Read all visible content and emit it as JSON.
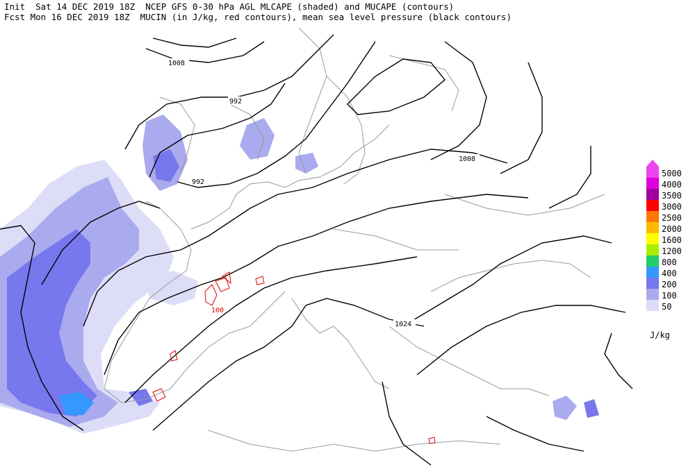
{
  "header": {
    "line1": "Init  Sat 14 DEC 2019 18Z  NCEP GFS 0-30 hPa AGL MLCAPE (shaded) and MUCAPE (contours)",
    "line2": "Fcst Mon 16 DEC 2019 18Z  MUCIN (in J/kg, red contours), mean sea level pressure (black contours)"
  },
  "legend": {
    "units": "J/kg",
    "levels": [
      {
        "label": "5000",
        "color": "#ee44ee"
      },
      {
        "label": "4000",
        "color": "#dd00dd"
      },
      {
        "label": "3500",
        "color": "#a000a0"
      },
      {
        "label": "3000",
        "color": "#ff0000"
      },
      {
        "label": "2500",
        "color": "#ff7700"
      },
      {
        "label": "2000",
        "color": "#ffbb00"
      },
      {
        "label": "1600",
        "color": "#ffff00"
      },
      {
        "label": "1200",
        "color": "#aaee00"
      },
      {
        "label": "800",
        "color": "#22cc66"
      },
      {
        "label": "400",
        "color": "#3399ff"
      },
      {
        "label": "200",
        "color": "#7777ee"
      },
      {
        "label": "100",
        "color": "#aaaaee"
      },
      {
        "label": "50",
        "color": "#ddddf8"
      }
    ]
  },
  "map": {
    "contour_labels": [
      "1008",
      "992",
      "992",
      "1008",
      "1024"
    ],
    "cin_label": "100",
    "colors": {
      "pressure": "#000000",
      "cin": "#e00000",
      "coast": "#999999"
    }
  }
}
